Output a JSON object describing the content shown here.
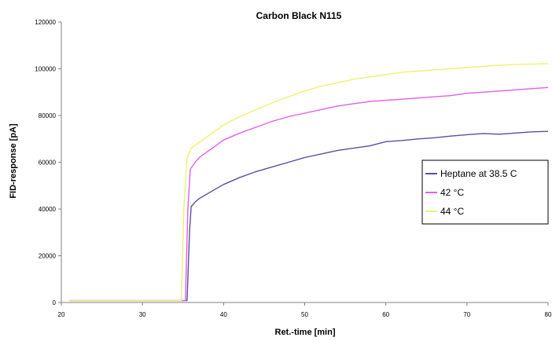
{
  "chart_data": {
    "type": "line",
    "title": "Carbon Black N115",
    "xlabel": "Ret.-time [min]",
    "ylabel": "FID-response [pA]",
    "xlim": [
      20,
      80
    ],
    "ylim": [
      0,
      120000
    ],
    "xticks": [
      20,
      30,
      40,
      50,
      60,
      70,
      80
    ],
    "yticks": [
      0,
      20000,
      40000,
      60000,
      80000,
      100000,
      120000
    ],
    "grid": false,
    "legend_position": "right",
    "series": [
      {
        "name": "Heptane at 38.5 C",
        "color": "#5a4fa0",
        "x": [
          21,
          25,
          30,
          34,
          35.5,
          35.8,
          36.0,
          36.5,
          37,
          38,
          39,
          40,
          42,
          44,
          46,
          48,
          50,
          52,
          54,
          56,
          58,
          60,
          62,
          64,
          66,
          68,
          70,
          72,
          74,
          76,
          78,
          80
        ],
        "y": [
          800,
          800,
          800,
          800,
          800,
          30000,
          41000,
          43000,
          44500,
          46500,
          48500,
          50500,
          53500,
          56000,
          58000,
          60000,
          62000,
          63500,
          65000,
          66000,
          67000,
          68800,
          69300,
          70000,
          70500,
          71200,
          71800,
          72300,
          72000,
          72500,
          73000,
          73200
        ]
      },
      {
        "name": "42 °C",
        "color": "#e060e8",
        "x": [
          21,
          25,
          30,
          34,
          35.3,
          35.6,
          35.9,
          36.5,
          37,
          38,
          39,
          40,
          42,
          44,
          46,
          48,
          50,
          52,
          54,
          56,
          58,
          60,
          62,
          64,
          66,
          68,
          70,
          72,
          74,
          76,
          78,
          80
        ],
        "y": [
          800,
          800,
          800,
          800,
          800,
          40000,
          57000,
          60000,
          62000,
          64500,
          67000,
          69500,
          72500,
          75000,
          77500,
          79500,
          81000,
          82500,
          84000,
          85000,
          86000,
          86500,
          87000,
          87500,
          88000,
          88500,
          89500,
          90000,
          90500,
          91000,
          91500,
          92000
        ]
      },
      {
        "name": "44 °C",
        "color": "#f0f070",
        "x": [
          21,
          25,
          30,
          34,
          34.8,
          35.1,
          35.5,
          36,
          37,
          38,
          39,
          40,
          42,
          44,
          46,
          48,
          50,
          52,
          54,
          56,
          58,
          60,
          62,
          64,
          66,
          68,
          70,
          72,
          74,
          76,
          78,
          80
        ],
        "y": [
          800,
          800,
          800,
          800,
          800,
          40000,
          62000,
          66000,
          68500,
          71000,
          73500,
          76000,
          79500,
          82500,
          85500,
          88000,
          90500,
          92500,
          94000,
          95500,
          96500,
          97500,
          98500,
          99000,
          99500,
          100000,
          100500,
          101000,
          101500,
          101800,
          102000,
          102200
        ]
      }
    ]
  }
}
